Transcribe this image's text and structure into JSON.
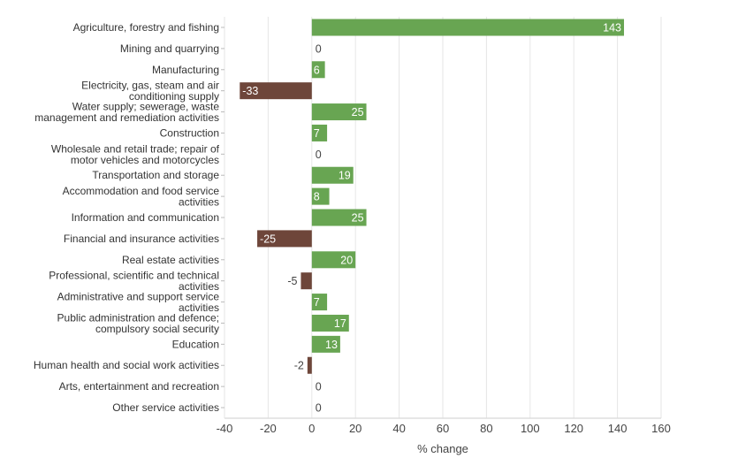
{
  "chart_data": {
    "type": "bar",
    "orientation": "horizontal",
    "categories": [
      [
        "Agriculture, forestry and fishing"
      ],
      [
        "Mining and quarrying"
      ],
      [
        "Manufacturing"
      ],
      [
        "Electricity, gas, steam and air",
        "conditioning supply"
      ],
      [
        "Water supply; sewerage, waste",
        "management and remediation activities"
      ],
      [
        "Construction"
      ],
      [
        "Wholesale and retail trade; repair of",
        "motor vehicles and motorcycles"
      ],
      [
        "Transportation and storage"
      ],
      [
        "Accommodation and food service",
        "activities"
      ],
      [
        "Information and communication"
      ],
      [
        "Financial and insurance activities"
      ],
      [
        "Real estate activities"
      ],
      [
        "Professional, scientific and technical",
        "activities"
      ],
      [
        "Administrative and support service",
        "activities"
      ],
      [
        "Public administration and defence;",
        "compulsory social security"
      ],
      [
        "Education"
      ],
      [
        "Human health and social work activities"
      ],
      [
        "Arts, entertainment and recreation"
      ],
      [
        "Other service activities"
      ]
    ],
    "values": [
      143,
      0,
      6,
      -33,
      25,
      7,
      0,
      19,
      8,
      25,
      -25,
      20,
      -5,
      7,
      17,
      13,
      -2,
      0,
      0
    ],
    "xlabel": "% change",
    "xlim": [
      -40,
      160
    ],
    "xticks": [
      -40,
      -20,
      0,
      20,
      40,
      60,
      80,
      100,
      120,
      140,
      160
    ],
    "grid": true,
    "colors": {
      "positive": "#68a552",
      "negative": "#6e463a"
    }
  }
}
